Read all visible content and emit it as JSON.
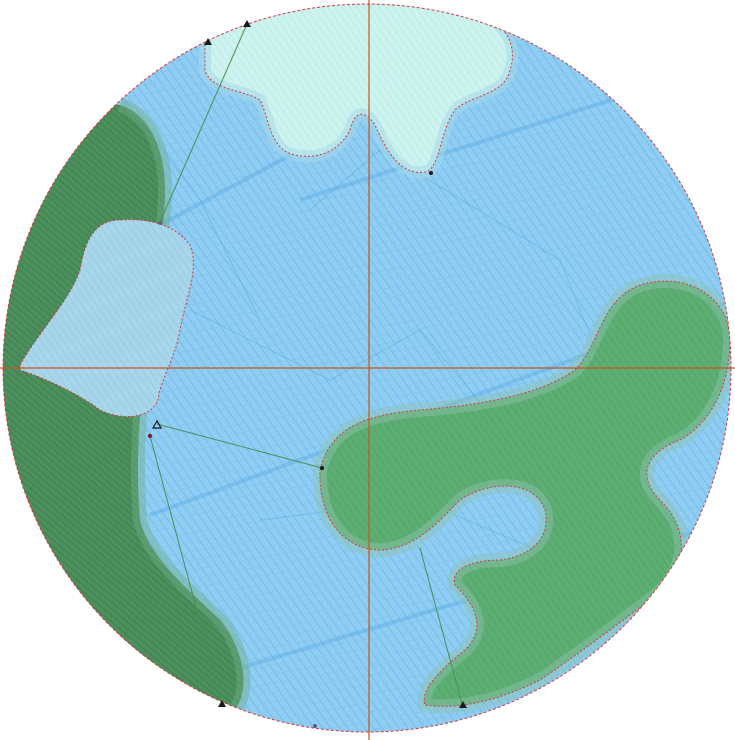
{
  "canvas": {
    "description_visible_text": "",
    "colors": {
      "background": "#ffffff",
      "ocean": "#8fcdf2",
      "ocean_hatch": "#5aa9e6",
      "ice": "#cdf3ef",
      "ice_hatch": "#9fe3dc",
      "land_green": "#5dae73",
      "land_dark": "#4a8f5c",
      "land_hatch": "#2e6b3c",
      "land_light": "#a7d6ea",
      "outline_red": "#d63a3a",
      "axis_orange": "#c8541e",
      "track_green": "#4c8f55",
      "marker": "#1a1a1a"
    },
    "icons": [
      "triangle-marker-icon",
      "dot-marker-icon"
    ]
  }
}
